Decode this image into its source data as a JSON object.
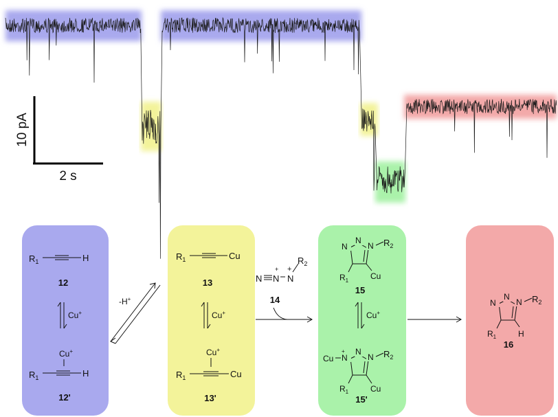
{
  "scale_bar": {
    "current": "10 pA",
    "time": "2 s"
  },
  "colors": {
    "blue": "#a9a9ee",
    "yellow": "#f3f39a",
    "green": "#aaf2aa",
    "red": "#f3a9a9",
    "trace": "#1a1a1a"
  },
  "trace_segments": [
    {
      "state": "blue",
      "label": "12"
    },
    {
      "state": "yellow",
      "label": "13"
    },
    {
      "state": "blue",
      "label": "12"
    },
    {
      "state": "yellow",
      "label": "13"
    },
    {
      "state": "green",
      "label": "15"
    },
    {
      "state": "red",
      "label": "16"
    }
  ],
  "scheme": {
    "box1": {
      "top_formula_r": "R",
      "top_formula_r_sub": "1",
      "top_formula_end": "H",
      "top_id": "12",
      "cu": "Cu",
      "bottom_formula_end": "H",
      "bottom_id": "12'"
    },
    "box2": {
      "top_formula_r": "R",
      "top_formula_r_sub": "1",
      "top_formula_end": "Cu",
      "top_id": "13",
      "cu": "Cu",
      "bottom_formula_end": "Cu",
      "bottom_id": "13'"
    },
    "box3": {
      "top_id": "15",
      "bottom_id": "15'",
      "cu": "Cu"
    },
    "box4": {
      "id": "16"
    },
    "proton": "-H",
    "proton_sup": "+",
    "cu_plus": "Cu",
    "plus": "+",
    "azide": {
      "n_left": "N",
      "n_mid": "N",
      "n_right": "N",
      "r": "R",
      "r_sub": "2",
      "id": "14"
    },
    "triazole": {
      "n": "N",
      "r1": "R",
      "r1_sub": "1",
      "r2": "R",
      "r2_sub": "2",
      "cu": "Cu",
      "h": "H"
    }
  }
}
